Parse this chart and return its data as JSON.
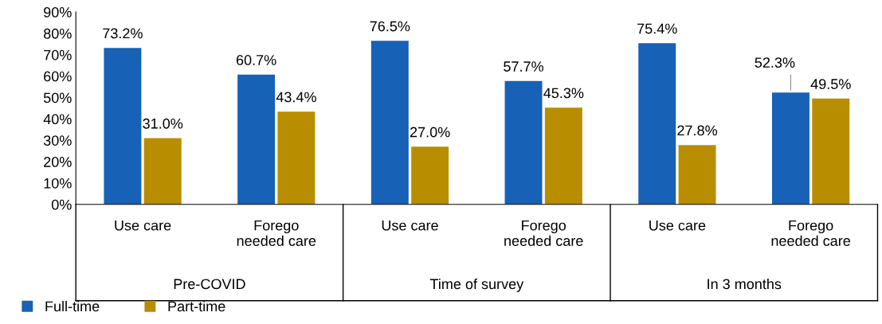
{
  "chart_data": {
    "type": "bar",
    "categories": [
      "Use care",
      "Forego\nneeded care",
      "Use care",
      "Forego\nneeded care",
      "Use care",
      "Forego\nneeded care"
    ],
    "annotations": [
      "Pre-COVID",
      "Time of survey",
      "In 3 months"
    ],
    "series": [
      {
        "name": "Full-time",
        "color": "#1761b6",
        "values": [
          73.2,
          60.7,
          76.5,
          57.7,
          75.4,
          52.3
        ],
        "value_labels": [
          "73.2%",
          "60.7%",
          "76.5%",
          "57.7%",
          "75.4%",
          "52.3%"
        ]
      },
      {
        "name": "Part-time",
        "color": "#b98d00",
        "values": [
          31.0,
          43.4,
          27.0,
          45.3,
          27.8,
          49.5
        ],
        "value_labels": [
          "31.0%",
          "43.4%",
          "27.0%",
          "45.3%",
          "27.8%",
          "49.5%"
        ]
      }
    ],
    "ylim": [
      0,
      90
    ],
    "yticks": [
      {
        "value": 0,
        "label": "0%"
      },
      {
        "value": 10,
        "label": "10%"
      },
      {
        "value": 20,
        "label": "20%"
      },
      {
        "value": 30,
        "label": "30%"
      },
      {
        "value": 40,
        "label": "40%"
      },
      {
        "value": 50,
        "label": "50%"
      },
      {
        "value": 60,
        "label": "60%"
      },
      {
        "value": 70,
        "label": "70%"
      },
      {
        "value": 80,
        "label": "80%"
      },
      {
        "value": 90,
        "label": "90%"
      }
    ],
    "grid": false,
    "legend": "bottom left"
  }
}
